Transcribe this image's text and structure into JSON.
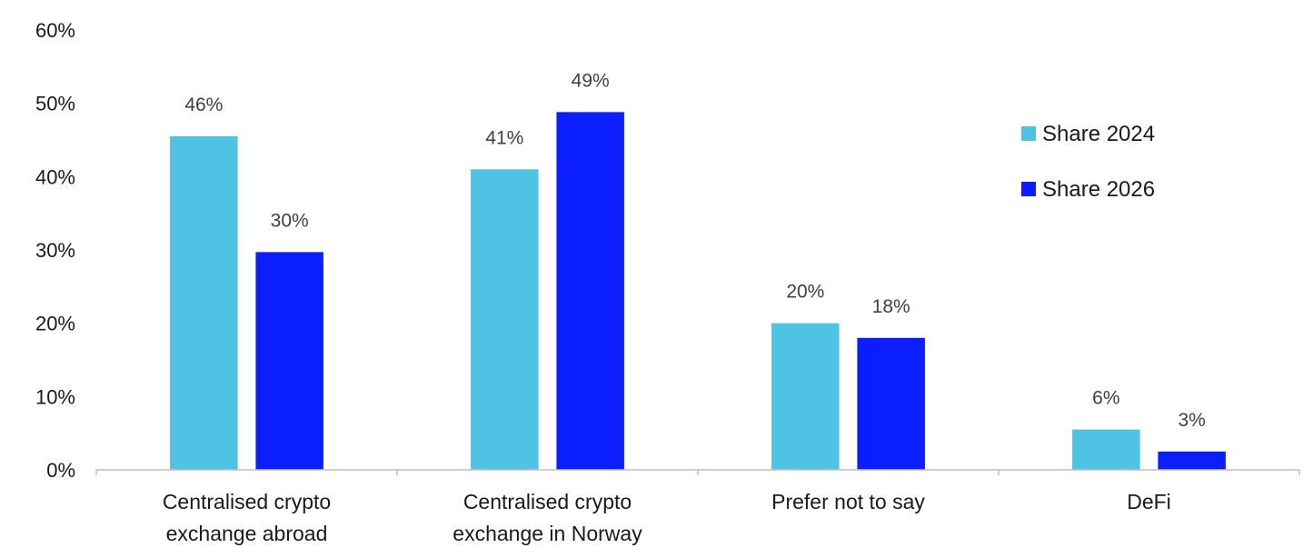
{
  "chart_data": {
    "type": "bar",
    "title": "",
    "xlabel": "",
    "ylabel": "",
    "ylim": [
      0,
      60
    ],
    "yticks": [
      "0%",
      "10%",
      "20%",
      "30%",
      "40%",
      "50%",
      "60%"
    ],
    "grid": false,
    "legend_position": "right",
    "categories": [
      [
        "Centralised crypto",
        "exchange abroad"
      ],
      [
        "Centralised crypto",
        "exchange in Norway"
      ],
      [
        "Prefer not to say"
      ],
      [
        "DeFi"
      ]
    ],
    "series": [
      {
        "name": "Share 2024",
        "color": "#4FC3E3",
        "values": [
          45.5,
          41,
          20,
          5.5
        ],
        "labels": [
          "46%",
          "41%",
          "20%",
          "6%"
        ]
      },
      {
        "name": "Share 2026",
        "color": "#0A1EFF",
        "values": [
          29.7,
          48.8,
          18,
          2.5
        ],
        "labels": [
          "30%",
          "49%",
          "18%",
          "3%"
        ]
      }
    ]
  }
}
